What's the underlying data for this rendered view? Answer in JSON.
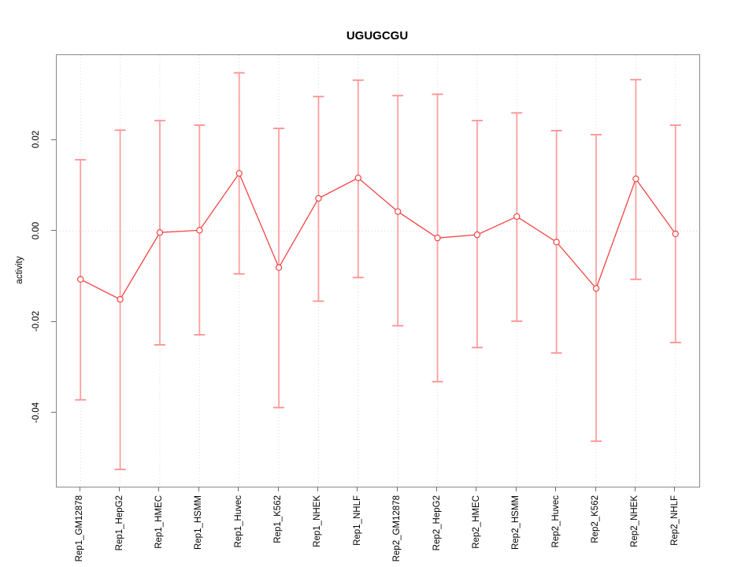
{
  "title": "UGUGCGU",
  "axes": {
    "ylabel": "activity",
    "ytick_labels": [
      "0.02",
      "0.00",
      "-0.02",
      "-0.04"
    ]
  },
  "chart_data": {
    "type": "scatter",
    "title": "UGUGCGU",
    "xlabel": "",
    "ylabel": "activity",
    "categories": [
      "Rep1_GM12878",
      "Rep1_HepG2",
      "Rep1_HMEC",
      "Rep1_HSMM",
      "Rep1_Huvec",
      "Rep1_K562",
      "Rep1_NHEK",
      "Rep1_NHLF",
      "Rep2_GM12878",
      "Rep2_HepG2",
      "Rep2_HMEC",
      "Rep2_HSMM",
      "Rep2_Huvec",
      "Rep2_K562",
      "Rep2_NHEK",
      "Rep2_NHLF"
    ],
    "series": [
      {
        "name": "activity",
        "values": [
          -0.0106,
          -0.015,
          -0.0003,
          0.0002,
          0.0127,
          -0.008,
          0.0072,
          0.0117,
          0.0043,
          -0.0015,
          -0.0008,
          0.0032,
          -0.0024,
          -0.0126,
          0.0115,
          -0.0006
        ],
        "upper": [
          0.0157,
          0.0222,
          0.0243,
          0.0233,
          0.0348,
          0.0226,
          0.0296,
          0.0332,
          0.0298,
          0.0301,
          0.0243,
          0.026,
          0.0221,
          0.0212,
          0.0333,
          0.0233
        ],
        "lower": [
          -0.0371,
          -0.0524,
          -0.025,
          -0.0228,
          -0.0094,
          -0.0388,
          -0.0154,
          -0.0102,
          -0.0208,
          -0.0331,
          -0.0256,
          -0.0198,
          -0.0268,
          -0.0462,
          -0.0106,
          -0.0245
        ]
      }
    ],
    "yticks": [
      0.02,
      0.0,
      -0.02,
      -0.04
    ],
    "ylim": [
      -0.056,
      0.039
    ],
    "points_connected_by_line": true,
    "marker": "open-circle",
    "error_bars": true,
    "grid": "dotted vertical line at each category; dotted horizontal line at 0",
    "legend": "none",
    "colors": {
      "point": "#f24545",
      "line": "#f24545",
      "error_bar": "#ff8f8f",
      "grid": "#dcdcdc",
      "frame": "#8a8a8a",
      "tick": "#6e6e6e"
    }
  }
}
